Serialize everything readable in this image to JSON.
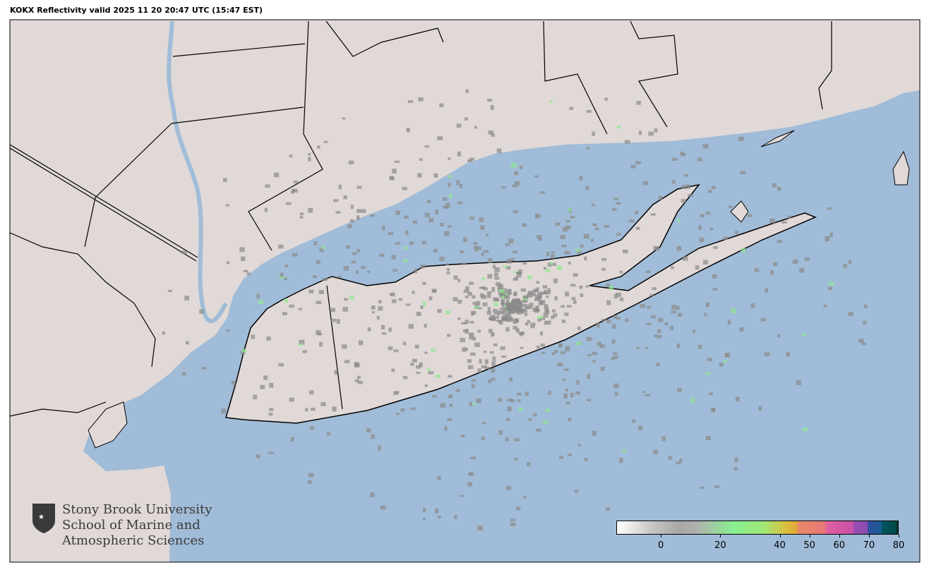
{
  "title": "KOKX Reflectivity valid 2025 11 20 20:47 UTC (15:47 EST)",
  "map": {
    "land_color": "#e1d9d7",
    "water_color": "#a0bcd8",
    "radar_site": "KOKX"
  },
  "logo": {
    "lines": [
      "Stony Brook University",
      "School of Marine and",
      "Atmospheric Sciences"
    ]
  },
  "colorbar": {
    "range": [
      -15,
      80
    ],
    "ticks": [
      {
        "value": 0,
        "label": "0"
      },
      {
        "value": 20,
        "label": "20"
      },
      {
        "value": 40,
        "label": "40"
      },
      {
        "value": 50,
        "label": "50"
      },
      {
        "value": 60,
        "label": "60"
      },
      {
        "value": 70,
        "label": "70"
      },
      {
        "value": 80,
        "label": "80"
      }
    ]
  }
}
